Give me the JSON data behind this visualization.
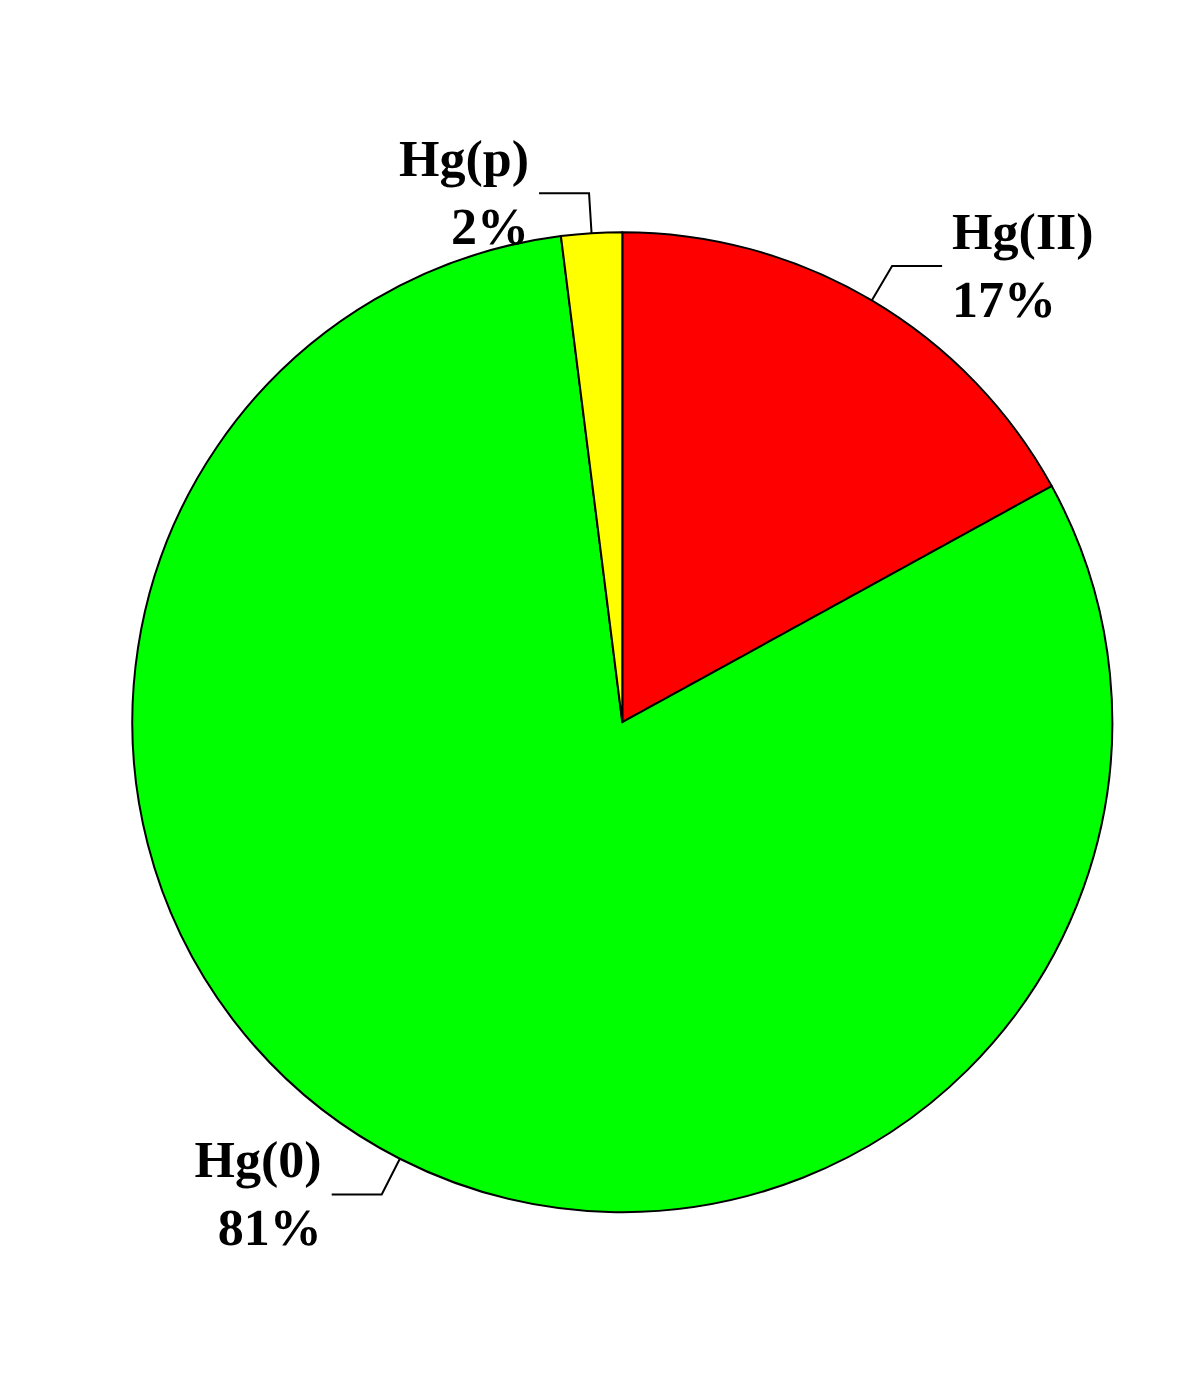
{
  "chart_data": {
    "type": "pie",
    "categories": [
      "Hg(II)",
      "Hg(0)",
      "Hg(p)"
    ],
    "values": [
      17,
      81,
      2
    ],
    "colors": [
      "#ff0000",
      "#00ff00",
      "#ffff00"
    ],
    "value_labels": [
      "17%",
      "81%",
      "2%"
    ],
    "legend": false
  }
}
